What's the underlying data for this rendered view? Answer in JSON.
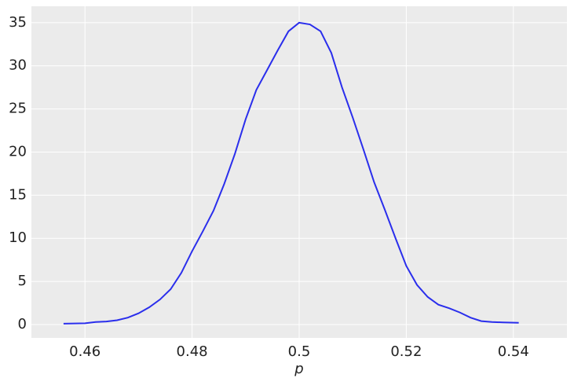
{
  "chart_data": {
    "type": "line",
    "xlabel": "p",
    "x": [
      0.456,
      0.46,
      0.462,
      0.464,
      0.466,
      0.468,
      0.47,
      0.472,
      0.474,
      0.476,
      0.478,
      0.48,
      0.482,
      0.484,
      0.486,
      0.488,
      0.49,
      0.492,
      0.494,
      0.496,
      0.498,
      0.5,
      0.502,
      0.504,
      0.506,
      0.508,
      0.51,
      0.512,
      0.514,
      0.516,
      0.518,
      0.52,
      0.522,
      0.524,
      0.526,
      0.528,
      0.53,
      0.532,
      0.534,
      0.536,
      0.538,
      0.541
    ],
    "values": [
      0.1,
      0.15,
      0.3,
      0.35,
      0.5,
      0.8,
      1.3,
      2.0,
      2.9,
      4.1,
      6.0,
      8.5,
      10.8,
      13.2,
      16.3,
      19.8,
      23.8,
      27.2,
      29.5,
      31.8,
      34.0,
      35.0,
      34.8,
      34.0,
      31.5,
      27.5,
      24.0,
      20.3,
      16.5,
      13.3,
      10.0,
      6.8,
      4.6,
      3.2,
      2.3,
      1.9,
      1.4,
      0.8,
      0.4,
      0.3,
      0.25,
      0.2
    ],
    "color": "#2a2eec",
    "xlim": [
      0.45,
      0.55
    ],
    "xticks": [
      0.46,
      0.48,
      0.5,
      0.52,
      0.54
    ],
    "ylim": [
      -1.55,
      36.9
    ],
    "yticks": [
      0,
      5,
      10,
      15,
      20,
      25,
      30,
      35
    ],
    "grid": true
  }
}
